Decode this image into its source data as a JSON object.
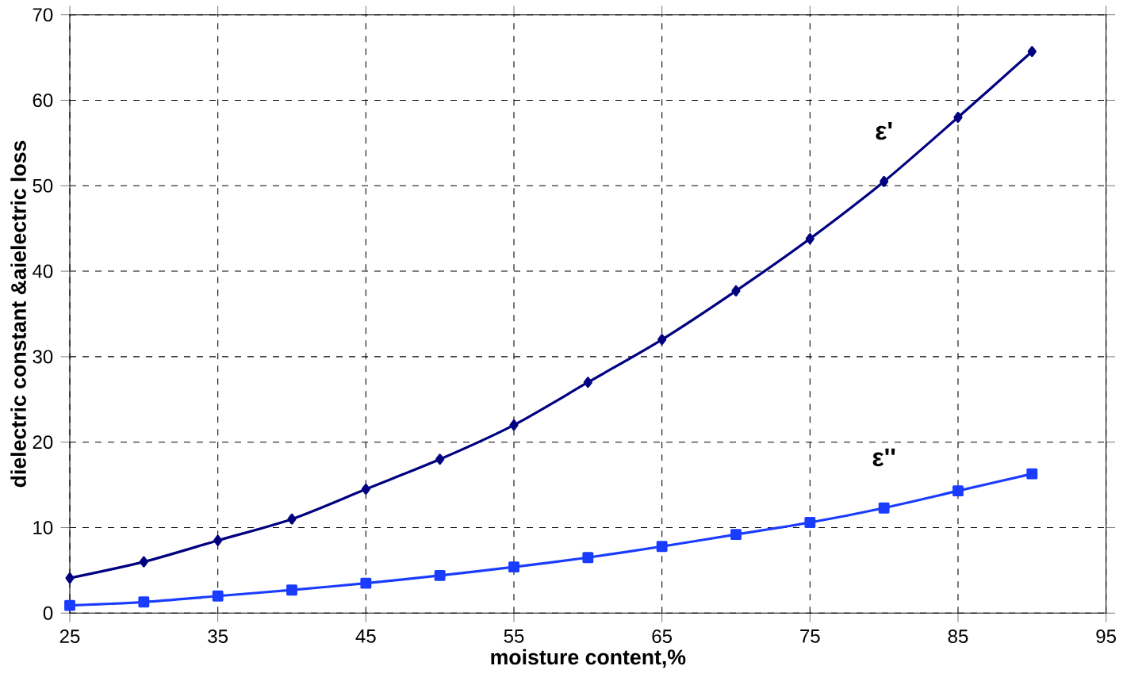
{
  "chart_data": {
    "type": "line",
    "xlabel": "moisture content,%",
    "ylabel": "dielectric constant &aielectric loss",
    "x": [
      25,
      30,
      35,
      40,
      45,
      50,
      55,
      60,
      65,
      70,
      75,
      80,
      85,
      90
    ],
    "series": [
      {
        "name": "ε'",
        "color": "#000080",
        "marker": "diamond",
        "values": [
          4.1,
          6,
          8.5,
          11,
          14.5,
          18,
          22,
          27,
          32,
          37.7,
          43.8,
          50.5,
          58,
          65.7
        ]
      },
      {
        "name": "ε''",
        "color": "#1a3cff",
        "marker": "square",
        "values": [
          0.9,
          1.3,
          2,
          2.7,
          3.5,
          4.4,
          5.4,
          6.5,
          7.8,
          9.2,
          10.6,
          12.3,
          14.3,
          16.3
        ]
      }
    ],
    "xlim": [
      25,
      95
    ],
    "xticks": [
      25,
      35,
      45,
      55,
      65,
      75,
      85,
      95
    ],
    "ylim": [
      0,
      70
    ],
    "yticks": [
      0,
      10,
      20,
      30,
      40,
      50,
      60,
      70
    ],
    "grid": true,
    "line_style": "solid",
    "legend": false
  }
}
